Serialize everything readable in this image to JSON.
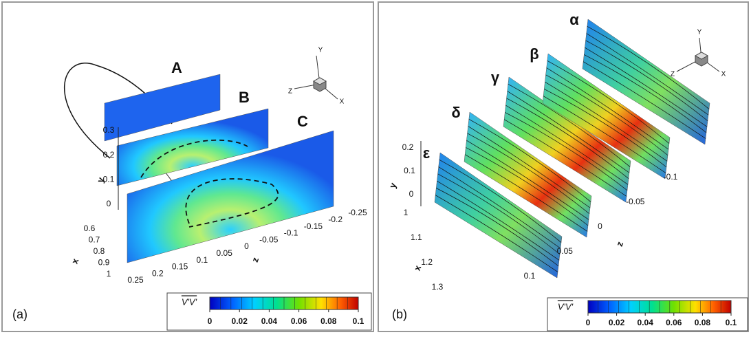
{
  "panels": [
    {
      "label": "(a)",
      "slices": [
        "A",
        "B",
        "C"
      ],
      "axes": {
        "y": {
          "title": "y",
          "ticks": [
            0,
            0.1,
            0.2,
            0.3
          ]
        },
        "x": {
          "title": "x",
          "ticks": [
            0.6,
            0.7,
            0.8,
            0.9,
            1
          ]
        },
        "z": {
          "title": "z",
          "ticks": [
            0.25,
            0.2,
            0.15,
            0.1,
            0.05,
            0,
            -0.05,
            -0.1,
            -0.15,
            -0.2,
            -0.25
          ]
        }
      },
      "triad": [
        "Y",
        "Z",
        "X"
      ],
      "colorbar": {
        "title": "V'V'",
        "lim": [
          0,
          0.1
        ],
        "ticks": [
          0,
          0.02,
          0.04,
          0.06,
          0.08,
          0.1
        ]
      }
    },
    {
      "label": "(b)",
      "slices": [
        "ε",
        "δ",
        "γ",
        "β",
        "α"
      ],
      "axes": {
        "y": {
          "title": "y",
          "ticks": [
            0,
            0.1,
            0.2
          ]
        },
        "x": {
          "title": "x",
          "ticks": [
            1,
            1.1,
            1.2,
            1.3
          ]
        },
        "z": {
          "title": "z",
          "ticks": [
            0.1,
            0.05,
            0,
            -0.05,
            -0.1
          ]
        }
      },
      "triad": [
        "Y",
        "Z",
        "X"
      ],
      "colorbar": {
        "title": "V'V'",
        "lim": [
          0,
          0.1
        ],
        "ticks": [
          0,
          0.02,
          0.04,
          0.06,
          0.08,
          0.1
        ]
      }
    }
  ]
}
